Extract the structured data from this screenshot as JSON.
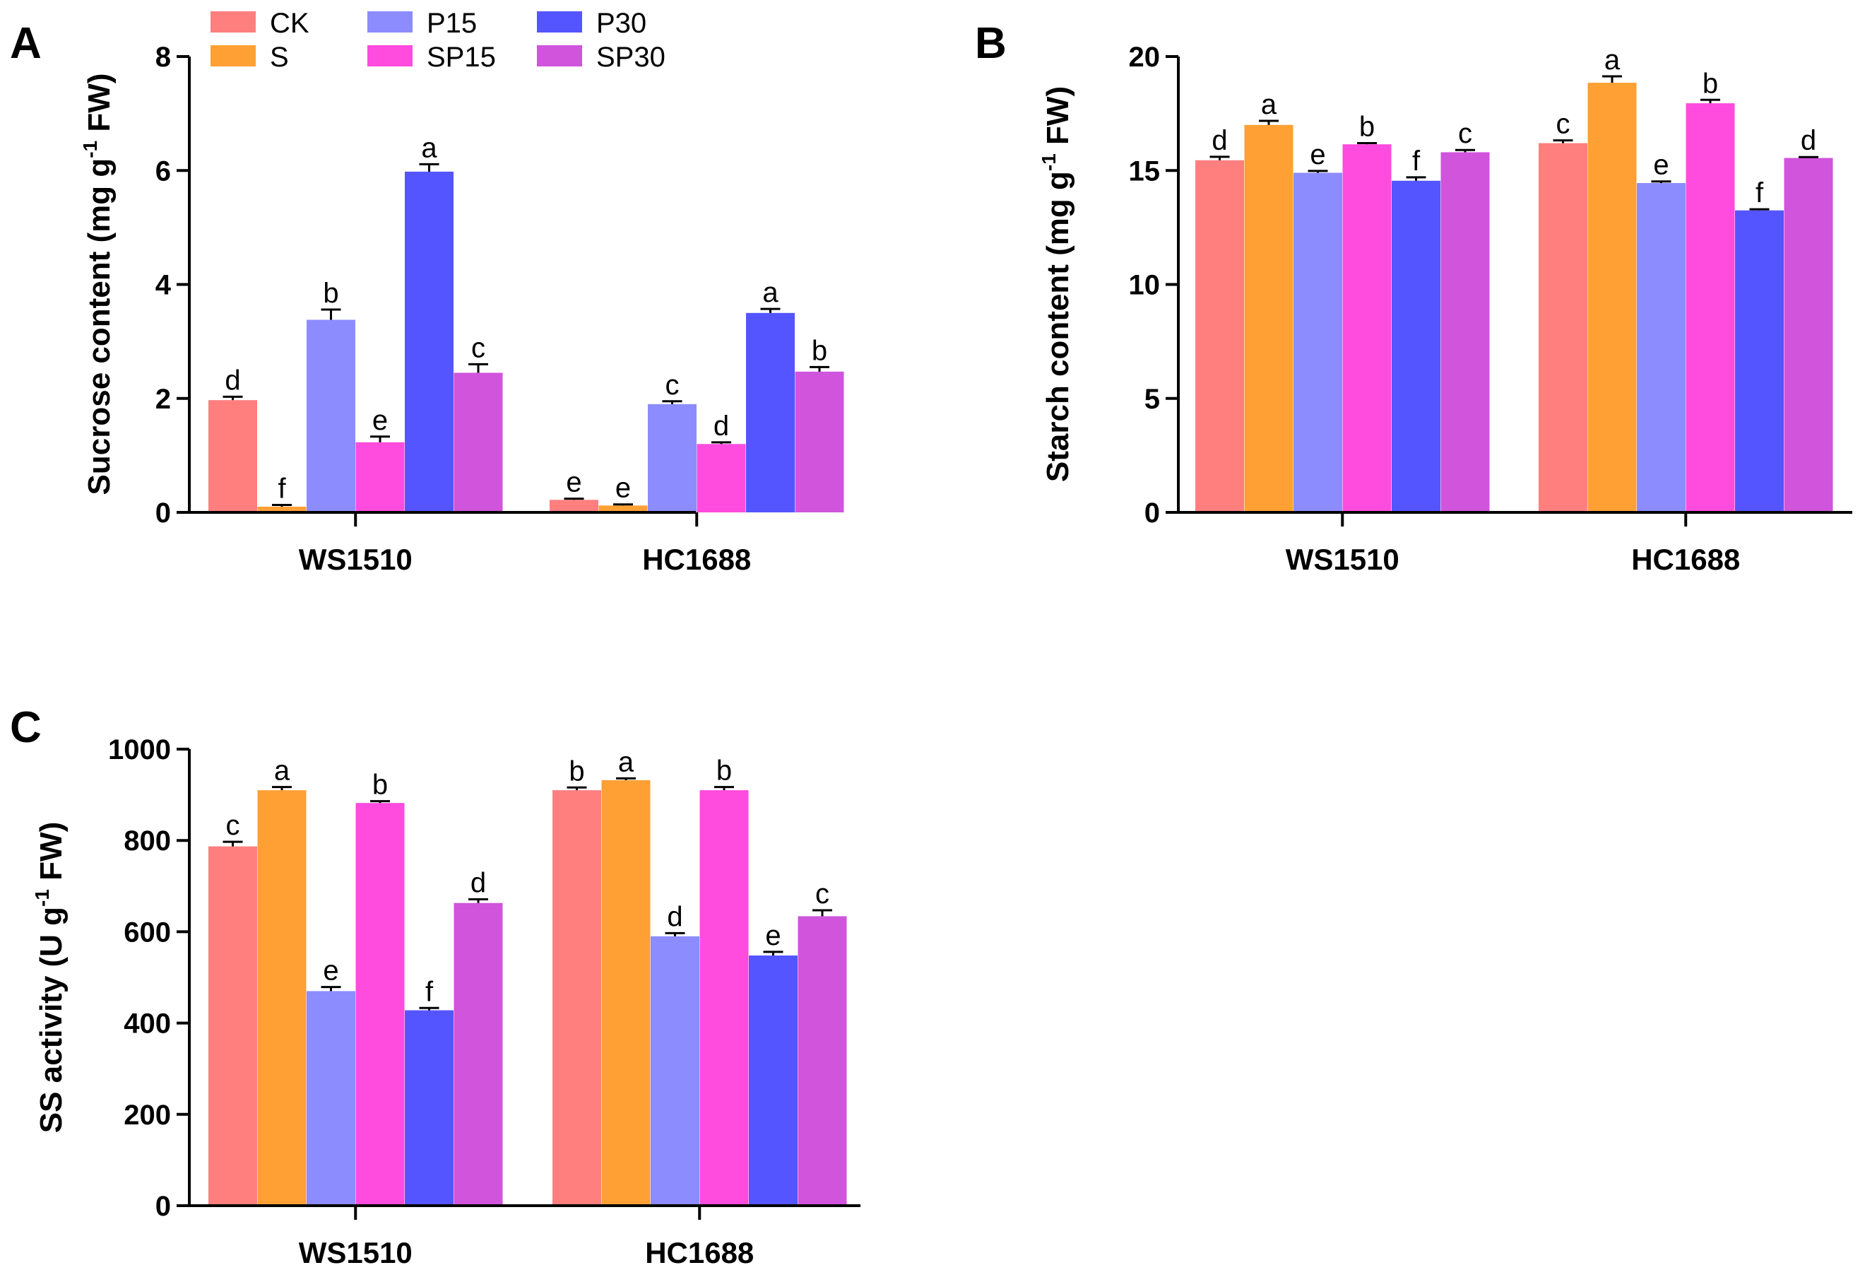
{
  "legend": {
    "items": [
      {
        "name": "CK",
        "color": "#FF7F7F"
      },
      {
        "name": "S",
        "color": "#FFA034"
      },
      {
        "name": "P15",
        "color": "#8C8CFF"
      },
      {
        "name": "SP15",
        "color": "#FF4BDE"
      },
      {
        "name": "P30",
        "color": "#5555FF"
      },
      {
        "name": "SP30",
        "color": "#D054DC"
      }
    ]
  },
  "chart_data": [
    {
      "panel": "A",
      "type": "bar",
      "ylabel": "Sucrose content (mg g⁻¹ FW)",
      "ylabel_parts": {
        "pre": "Sucrose content (mg g",
        "sup": "-1",
        "post": " FW)"
      },
      "ylim": [
        0,
        8
      ],
      "yticks": [
        0,
        2,
        4,
        6,
        8
      ],
      "categories": [
        "WS1510",
        "HC1688"
      ],
      "series": [
        {
          "name": "CK",
          "values": [
            1.97,
            0.22
          ],
          "errors": [
            0.06,
            0.02
          ],
          "letters": [
            "d",
            "e"
          ]
        },
        {
          "name": "S",
          "values": [
            0.1,
            0.12
          ],
          "errors": [
            0.03,
            0.02
          ],
          "letters": [
            "f",
            "e"
          ]
        },
        {
          "name": "P15",
          "values": [
            3.38,
            1.9
          ],
          "errors": [
            0.18,
            0.05
          ],
          "letters": [
            "b",
            "c"
          ]
        },
        {
          "name": "SP15",
          "values": [
            1.23,
            1.2
          ],
          "errors": [
            0.1,
            0.03
          ],
          "letters": [
            "e",
            "d"
          ]
        },
        {
          "name": "P30",
          "values": [
            5.98,
            3.5
          ],
          "errors": [
            0.13,
            0.07
          ],
          "letters": [
            "a",
            "a"
          ]
        },
        {
          "name": "SP30",
          "values": [
            2.45,
            2.47
          ],
          "errors": [
            0.15,
            0.08
          ],
          "letters": [
            "c",
            "b"
          ]
        }
      ]
    },
    {
      "panel": "B",
      "type": "bar",
      "ylabel": "Starch content (mg g⁻¹ FW)",
      "ylabel_parts": {
        "pre": "Starch content (mg g",
        "sup": "-1",
        "post": " FW)"
      },
      "ylim": [
        0,
        20
      ],
      "yticks": [
        0,
        5,
        10,
        15,
        20
      ],
      "categories": [
        "WS1510",
        "HC1688"
      ],
      "series": [
        {
          "name": "CK",
          "values": [
            15.45,
            16.2
          ],
          "errors": [
            0.15,
            0.12
          ],
          "letters": [
            "d",
            "c"
          ]
        },
        {
          "name": "S",
          "values": [
            17.0,
            18.85
          ],
          "errors": [
            0.18,
            0.28
          ],
          "letters": [
            "a",
            "a"
          ]
        },
        {
          "name": "P15",
          "values": [
            14.9,
            14.45
          ],
          "errors": [
            0.08,
            0.07
          ],
          "letters": [
            "e",
            "e"
          ]
        },
        {
          "name": "SP15",
          "values": [
            16.15,
            17.95
          ],
          "errors": [
            0.05,
            0.15
          ],
          "letters": [
            "b",
            "b"
          ]
        },
        {
          "name": "P30",
          "values": [
            14.55,
            13.25
          ],
          "errors": [
            0.15,
            0.05
          ],
          "letters": [
            "f",
            "f"
          ]
        },
        {
          "name": "SP30",
          "values": [
            15.8,
            15.55
          ],
          "errors": [
            0.1,
            0.04
          ],
          "letters": [
            "c",
            "d"
          ]
        }
      ]
    },
    {
      "panel": "C",
      "type": "bar",
      "ylabel": "SS activity (U g⁻¹ FW)",
      "ylabel_parts": {
        "pre": "SS activity (U g",
        "sup": "-1",
        "post": " FW)"
      },
      "ylim": [
        0,
        1000
      ],
      "yticks": [
        0,
        200,
        400,
        600,
        800,
        1000
      ],
      "categories": [
        "WS1510",
        "HC1688"
      ],
      "series": [
        {
          "name": "CK",
          "values": [
            787,
            910
          ],
          "errors": [
            10,
            6
          ],
          "letters": [
            "c",
            "b"
          ]
        },
        {
          "name": "S",
          "values": [
            910,
            932
          ],
          "errors": [
            7,
            4
          ],
          "letters": [
            "a",
            "a"
          ]
        },
        {
          "name": "P15",
          "values": [
            470,
            590
          ],
          "errors": [
            9,
            7
          ],
          "letters": [
            "e",
            "d"
          ]
        },
        {
          "name": "SP15",
          "values": [
            882,
            910
          ],
          "errors": [
            4,
            7
          ],
          "letters": [
            "b",
            "b"
          ]
        },
        {
          "name": "P30",
          "values": [
            428,
            548
          ],
          "errors": [
            5,
            8
          ],
          "letters": [
            "f",
            "e"
          ]
        },
        {
          "name": "SP30",
          "values": [
            663,
            634
          ],
          "errors": [
            8,
            13
          ],
          "letters": [
            "d",
            "c"
          ]
        }
      ]
    }
  ]
}
